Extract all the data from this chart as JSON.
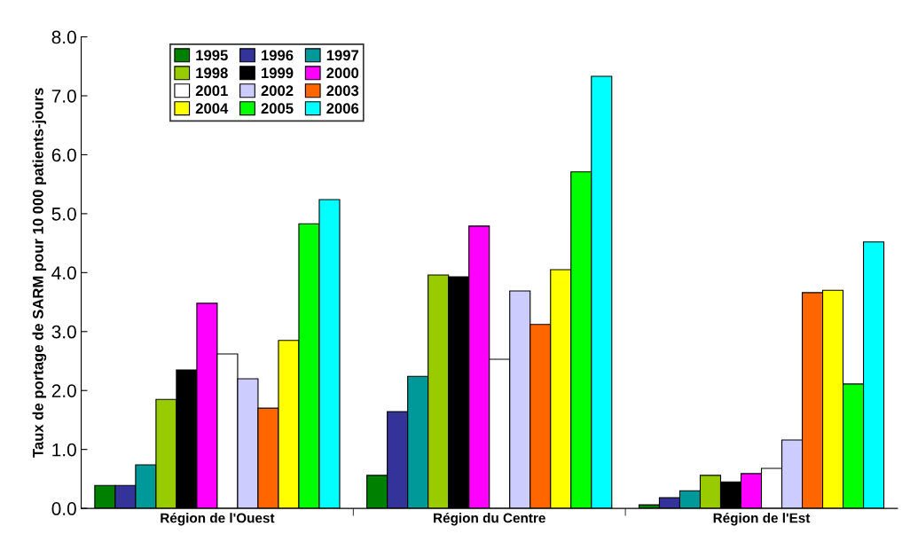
{
  "chart_data": {
    "type": "bar",
    "ylabel": "Taux de portage de SARM pour 10 000 patients-jours",
    "categories": [
      "Région de l'Ouest",
      "Région du Centre",
      "Région de l'Est"
    ],
    "series": [
      {
        "name": "1995",
        "color": "#008000",
        "values": [
          0.39,
          0.56,
          0.06
        ]
      },
      {
        "name": "1996",
        "color": "#333399",
        "values": [
          0.39,
          1.64,
          0.18
        ]
      },
      {
        "name": "1997",
        "color": "#009999",
        "values": [
          0.74,
          2.24,
          0.3
        ]
      },
      {
        "name": "1998",
        "color": "#99cc00",
        "values": [
          1.85,
          3.96,
          0.56
        ]
      },
      {
        "name": "1999",
        "color": "#000000",
        "values": [
          2.35,
          3.93,
          0.45
        ]
      },
      {
        "name": "2000",
        "color": "#ff00ff",
        "values": [
          3.48,
          4.79,
          0.59
        ]
      },
      {
        "name": "2001",
        "color": "#ffffff",
        "values": [
          2.62,
          2.53,
          0.68
        ]
      },
      {
        "name": "2002",
        "color": "#ccccff",
        "values": [
          2.2,
          3.69,
          1.16
        ]
      },
      {
        "name": "2003",
        "color": "#ff6600",
        "values": [
          1.7,
          3.12,
          3.66
        ]
      },
      {
        "name": "2004",
        "color": "#ffff00",
        "values": [
          2.85,
          4.05,
          3.7
        ]
      },
      {
        "name": "2005",
        "color": "#00ff00",
        "values": [
          4.83,
          5.71,
          2.11
        ]
      },
      {
        "name": "2006",
        "color": "#00ffff",
        "values": [
          5.24,
          7.33,
          4.52
        ]
      }
    ],
    "ylim": [
      0,
      8
    ],
    "yticks": [
      {
        "value": 0,
        "label": "0.0"
      },
      {
        "value": 1,
        "label": "1.0"
      },
      {
        "value": 2,
        "label": "2.0"
      },
      {
        "value": 3,
        "label": "3.0"
      },
      {
        "value": 4,
        "label": "4.0"
      },
      {
        "value": 5,
        "label": "5.0"
      },
      {
        "value": 6,
        "label": "6.0"
      },
      {
        "value": 7,
        "label": "7.0"
      },
      {
        "value": 8,
        "label": "8.0"
      }
    ],
    "grid": false,
    "legend": "top left"
  }
}
